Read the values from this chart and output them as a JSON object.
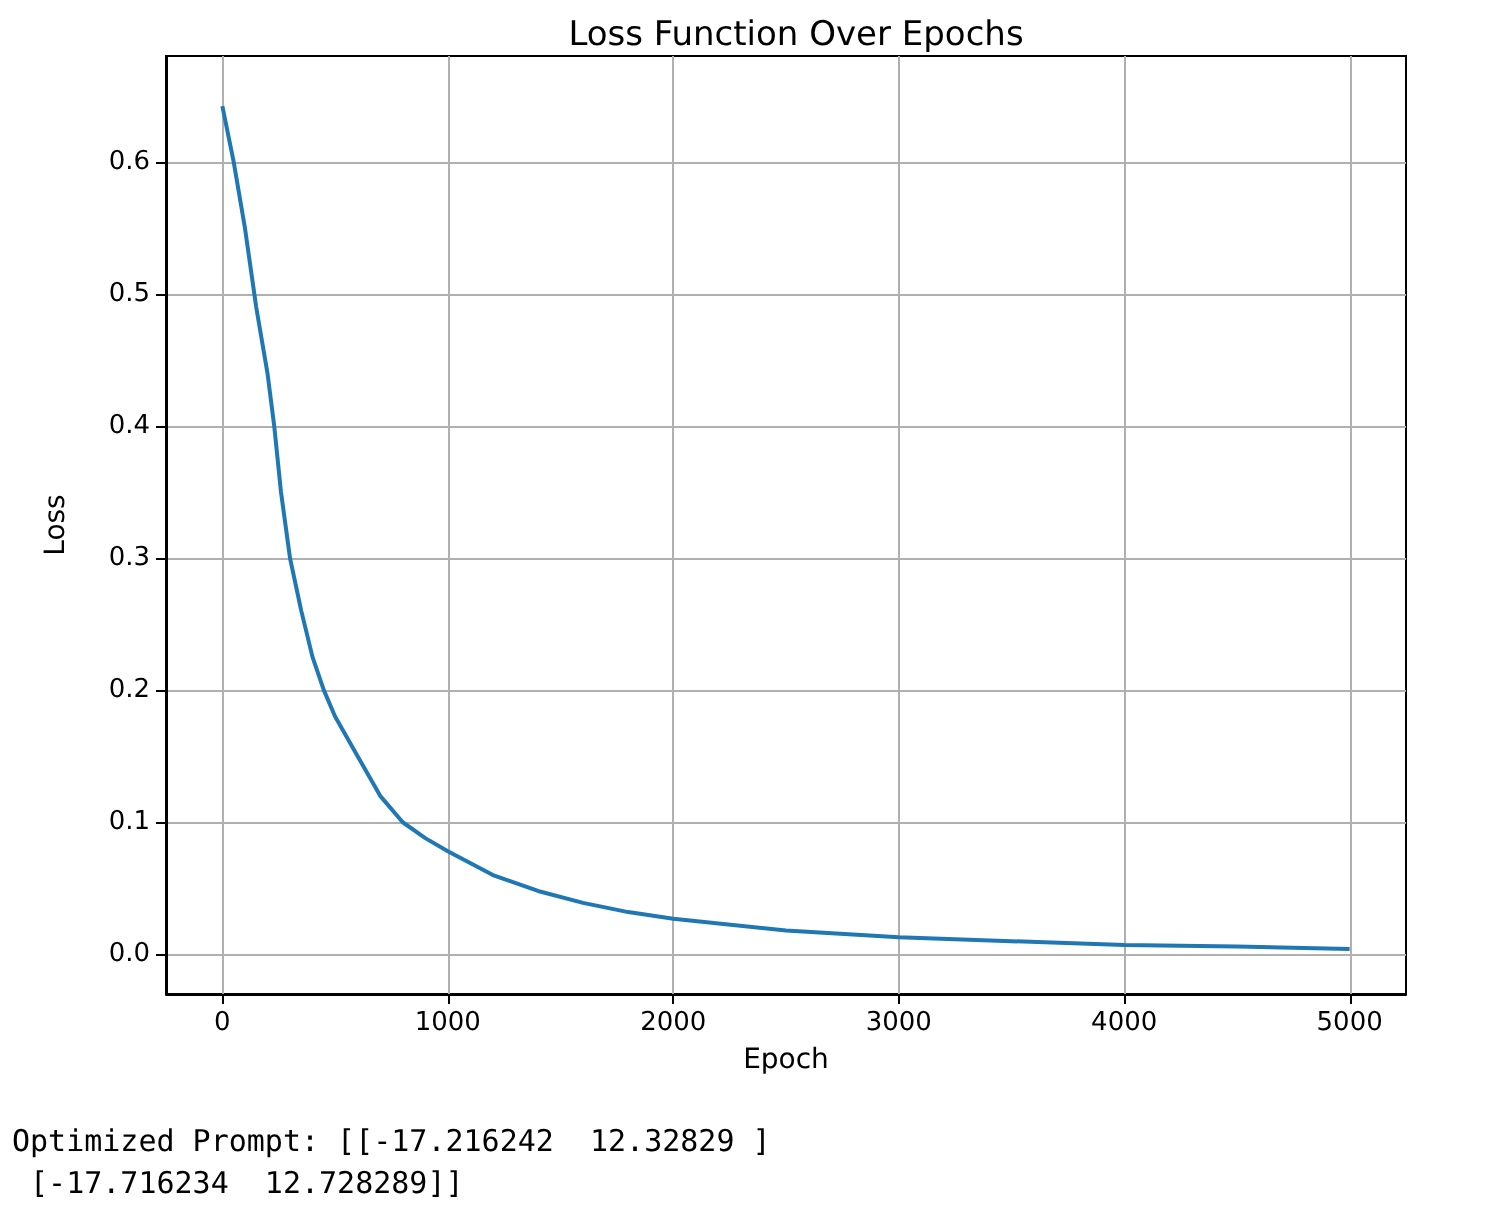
{
  "chart_data": {
    "type": "line",
    "title": "Loss Function Over Epochs",
    "xlabel": "Epoch",
    "ylabel": "Loss",
    "x": [
      0,
      50,
      100,
      150,
      200,
      230,
      260,
      300,
      350,
      400,
      450,
      500,
      600,
      700,
      800,
      900,
      1000,
      1200,
      1400,
      1600,
      1800,
      2000,
      2500,
      3000,
      3500,
      4000,
      4500,
      5000
    ],
    "series": [
      {
        "color": "#1f77b4",
        "values": [
          0.642,
          0.6,
          0.55,
          0.49,
          0.44,
          0.4,
          0.35,
          0.3,
          0.26,
          0.225,
          0.2,
          0.18,
          0.15,
          0.12,
          0.1,
          0.088,
          0.078,
          0.06,
          0.048,
          0.039,
          0.032,
          0.027,
          0.018,
          0.013,
          0.01,
          0.007,
          0.006,
          0.004
        ]
      }
    ],
    "xlim": [
      -250,
      5250
    ],
    "ylim": [
      -0.03,
      0.68
    ],
    "xticks": [
      0,
      1000,
      2000,
      3000,
      4000,
      5000
    ],
    "yticks": [
      {
        "value": 0,
        "label": "0.0"
      },
      {
        "value": 0.1,
        "label": "0.1"
      },
      {
        "value": 0.2,
        "label": "0.2"
      },
      {
        "value": 0.3,
        "label": "0.3"
      },
      {
        "value": 0.4,
        "label": "0.4"
      },
      {
        "value": 0.5,
        "label": "0.5"
      },
      {
        "value": 0.6,
        "label": "0.6"
      }
    ],
    "grid": true,
    "annotations": [
      "Optimized Prompt: [[-17.216242  12.32829 ]",
      " [-17.716234  12.728289]]"
    ]
  }
}
